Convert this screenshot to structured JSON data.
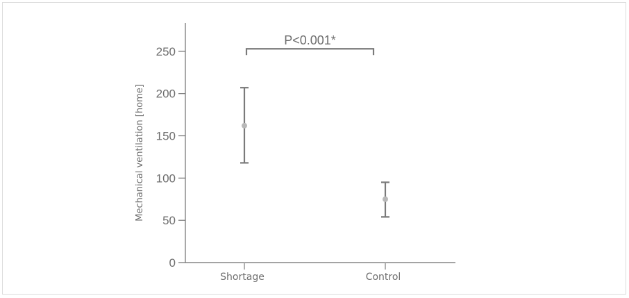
{
  "chart_data": {
    "type": "scatter",
    "title": "",
    "xlabel": "",
    "ylabel": "Mechanical ventilation [home]",
    "categories": [
      "Shortage",
      "Control"
    ],
    "series": [
      {
        "points": [
          {
            "category": "Shortage",
            "mean": 162,
            "lower": 118,
            "upper": 207
          },
          {
            "category": "Control",
            "mean": 75,
            "lower": 54,
            "upper": 95
          }
        ]
      }
    ],
    "yticks": [
      "0",
      "50",
      "100",
      "150",
      "200",
      "250"
    ],
    "ylim": [
      0,
      285
    ],
    "grid": false,
    "annotation": {
      "text": "P<0.001*",
      "between": [
        "Shortage",
        "Control"
      ],
      "y": 253
    },
    "colors": {
      "axis": "#6e6e6e",
      "errorbar": "#7a7a7a",
      "point": "#b8b8b8",
      "bracket": "#7a7a7a"
    }
  }
}
